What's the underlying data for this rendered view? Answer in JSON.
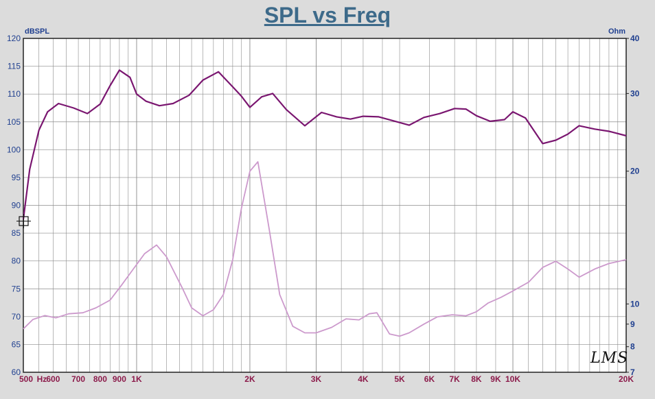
{
  "title": "SPL vs Freq",
  "left_unit": "dBSPL",
  "right_unit": "Ohm",
  "logo_text": "LMS",
  "colors": {
    "spl": "#7a1670",
    "impedance": "#cc99cc",
    "left_ticks": "#1f3f8f",
    "x_ticks": "#8b1a4a",
    "grid": "#8a8a8a"
  },
  "chart_data": {
    "type": "line",
    "title": "SPL vs Freq",
    "xscale": "log",
    "xlim": [
      500,
      20000
    ],
    "ylim_left": [
      60,
      120
    ],
    "yscale_right": "log",
    "ylim_right": [
      7,
      40
    ],
    "grid": true,
    "x_tick_labels": [
      {
        "v": 500,
        "t": "500"
      },
      {
        "v": 560,
        "t": "Hz"
      },
      {
        "v": 600,
        "t": "600"
      },
      {
        "v": 700,
        "t": "700"
      },
      {
        "v": 800,
        "t": "800"
      },
      {
        "v": 900,
        "t": "900"
      },
      {
        "v": 1000,
        "t": "1K"
      },
      {
        "v": 2000,
        "t": "2K"
      },
      {
        "v": 3000,
        "t": "3K"
      },
      {
        "v": 4000,
        "t": "4K"
      },
      {
        "v": 5000,
        "t": "5K"
      },
      {
        "v": 6000,
        "t": "6K"
      },
      {
        "v": 7000,
        "t": "7K"
      },
      {
        "v": 8000,
        "t": "8K"
      },
      {
        "v": 9000,
        "t": "9K"
      },
      {
        "v": 10000,
        "t": "10K"
      },
      {
        "v": 20000,
        "t": "20K"
      }
    ],
    "y_left_ticks": [
      60,
      65,
      70,
      75,
      80,
      85,
      90,
      95,
      100,
      105,
      110,
      115,
      120
    ],
    "y_right_ticks": [
      7,
      8,
      9,
      10,
      20,
      30,
      40
    ],
    "series": [
      {
        "axis": "left",
        "x": [
          500,
          520,
          550,
          580,
          620,
          680,
          740,
          800,
          850,
          900,
          960,
          1000,
          1060,
          1150,
          1250,
          1380,
          1500,
          1650,
          1800,
          1900,
          2000,
          2150,
          2300,
          2500,
          2800,
          3100,
          3400,
          3700,
          4000,
          4400,
          4800,
          5300,
          5800,
          6400,
          7000,
          7500,
          8000,
          8700,
          9500,
          10000,
          10800,
          12000,
          13000,
          14000,
          15000,
          16500,
          18000,
          20000
        ],
        "y": [
          87.5,
          96.5,
          103.5,
          106.8,
          108.3,
          107.5,
          106.5,
          108.2,
          111.5,
          114.3,
          113.0,
          110.0,
          108.7,
          107.9,
          108.3,
          109.8,
          112.5,
          114.0,
          111.3,
          109.6,
          107.6,
          109.5,
          110.1,
          107.2,
          104.3,
          106.7,
          105.9,
          105.5,
          106.0,
          105.9,
          105.2,
          104.4,
          105.8,
          106.5,
          107.4,
          107.3,
          106.1,
          105.1,
          105.4,
          106.8,
          105.7,
          101.1,
          101.7,
          102.8,
          104.3,
          103.7,
          103.3,
          102.5
        ]
      },
      {
        "axis": "right",
        "x": [
          500,
          530,
          570,
          610,
          660,
          720,
          780,
          850,
          910,
          980,
          1050,
          1130,
          1200,
          1320,
          1400,
          1500,
          1600,
          1700,
          1800,
          1900,
          2000,
          2100,
          2250,
          2400,
          2600,
          2800,
          3000,
          3300,
          3600,
          3900,
          4150,
          4350,
          4700,
          5000,
          5300,
          5800,
          6300,
          6900,
          7500,
          8000,
          8600,
          9300,
          10000,
          11000,
          12000,
          13000,
          14000,
          15000,
          16500,
          18000,
          20000
        ],
        "y": [
          8.78,
          9.22,
          9.41,
          9.3,
          9.5,
          9.55,
          9.8,
          10.2,
          11.0,
          12.0,
          13.0,
          13.6,
          12.8,
          10.9,
          9.8,
          9.4,
          9.7,
          10.5,
          12.6,
          16.5,
          20.0,
          21.0,
          14.8,
          10.5,
          8.9,
          8.6,
          8.6,
          8.85,
          9.25,
          9.2,
          9.5,
          9.55,
          8.55,
          8.45,
          8.6,
          9.0,
          9.35,
          9.45,
          9.4,
          9.6,
          10.05,
          10.35,
          10.7,
          11.2,
          12.1,
          12.5,
          12.0,
          11.5,
          12.0,
          12.35,
          12.6
        ]
      }
    ]
  }
}
